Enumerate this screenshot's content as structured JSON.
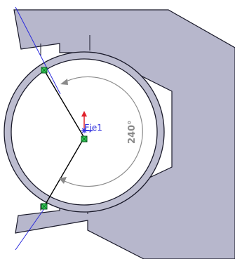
{
  "viewport": {
    "title": "",
    "colors": {
      "background": "#ffffff",
      "part_fill": "#b7b7cc",
      "part_edge": "#1a1a2a",
      "ring_fill": "#bdbdd0",
      "inner_fill": "#ffffff",
      "sketch_line": "#000000",
      "construction_line": "#2a2adc",
      "dimension": "#8a8a8a",
      "point_fill": "#33cc55",
      "point_edge": "#0b5a20",
      "axis_red": "#e0202a",
      "axis_blue": "#2a2adc"
    }
  },
  "sketch": {
    "axis_label": "Eje1",
    "angle_dimension": "240°",
    "points": [
      {
        "name": "sketch-point-top"
      },
      {
        "name": "sketch-point-center"
      },
      {
        "name": "sketch-point-bottom"
      }
    ]
  }
}
